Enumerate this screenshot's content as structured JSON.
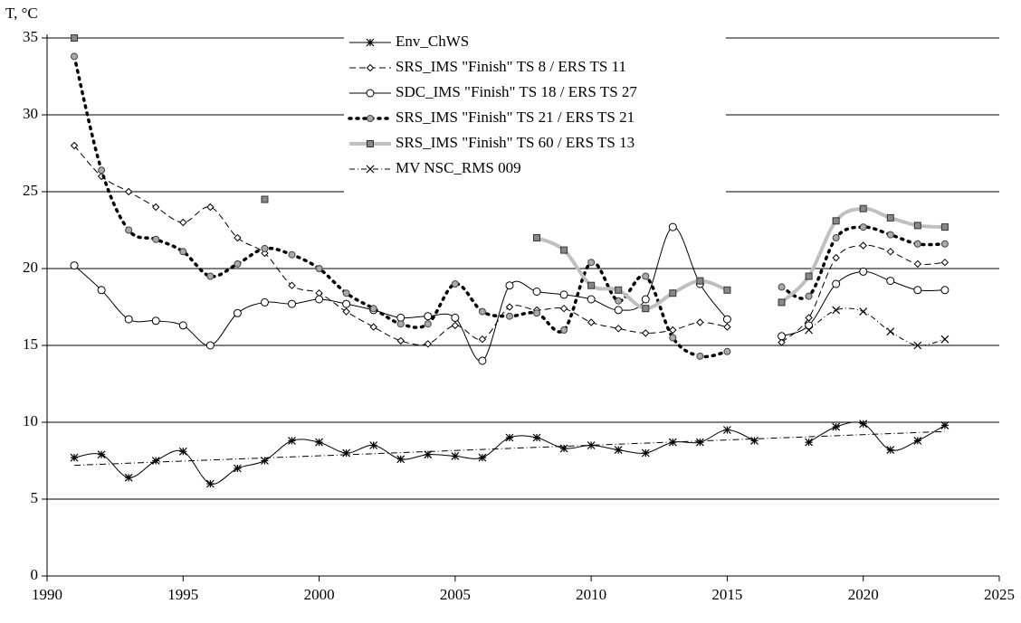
{
  "chart_data": {
    "type": "line",
    "y_label": "T, °C",
    "x": [
      1991,
      1992,
      1993,
      1994,
      1995,
      1996,
      1997,
      1998,
      1999,
      2000,
      2001,
      2002,
      2003,
      2004,
      2005,
      2006,
      2007,
      2008,
      2009,
      2010,
      2011,
      2012,
      2013,
      2014,
      2015,
      2016,
      2017,
      2018,
      2019,
      2020,
      2021,
      2022,
      2023
    ],
    "series": [
      {
        "name": "Env_ChWS",
        "color": "#000000",
        "width": 1,
        "dash": "solid",
        "marker": "star",
        "values": [
          7.7,
          7.9,
          6.4,
          7.5,
          8.1,
          6.0,
          7.0,
          7.5,
          8.8,
          8.7,
          8.0,
          8.5,
          7.6,
          7.9,
          7.8,
          7.7,
          9.0,
          9.0,
          8.3,
          8.5,
          8.2,
          8.0,
          8.7,
          8.7,
          9.5,
          8.8,
          null,
          8.7,
          9.7,
          9.9,
          8.2,
          8.8,
          9.8
        ]
      },
      {
        "name": "SRS_IMS \"Finish\" TS 8 / ERS TS 11",
        "color": "#000000",
        "width": 1,
        "dash": "dashed",
        "marker": "diamond",
        "values": [
          28,
          26,
          25,
          24,
          23,
          24,
          22,
          21,
          18.9,
          18.4,
          17.2,
          16.2,
          15.3,
          15.1,
          16.3,
          15.4,
          17.5,
          17.3,
          17.4,
          16.5,
          16.1,
          15.8,
          16.0,
          16.5,
          16.2,
          null,
          15.2,
          16.8,
          20.7,
          21.5,
          21.1,
          20.3,
          20.4
        ]
      },
      {
        "name": "SDC_IMS \"Finish\" TS 18 / ERS TS 27",
        "color": "#000000",
        "width": 1,
        "dash": "solid",
        "marker": "circle",
        "values": [
          20.2,
          18.6,
          16.7,
          16.6,
          16.3,
          15.0,
          17.1,
          17.8,
          17.7,
          18.0,
          17.7,
          17.3,
          16.8,
          16.9,
          16.8,
          14.0,
          18.9,
          18.5,
          18.3,
          18.0,
          17.3,
          18.0,
          22.7,
          19.0,
          16.7,
          null,
          15.6,
          16.3,
          19.0,
          19.8,
          19.2,
          18.6,
          18.6
        ]
      },
      {
        "name": "SRS_IMS \"Finish\" TS 21 / ERS TS 21",
        "color": "#000000",
        "width": 3.5,
        "dash": "dotted",
        "marker": "graycircle",
        "values": [
          33.8,
          26.4,
          22.5,
          21.9,
          21.1,
          19.5,
          20.3,
          21.3,
          20.9,
          20.0,
          18.4,
          17.4,
          16.4,
          16.4,
          19.0,
          17.2,
          16.9,
          17.1,
          16.0,
          20.4,
          17.9,
          19.5,
          15.5,
          14.3,
          14.6,
          null,
          18.8,
          18.2,
          22.0,
          22.7,
          22.2,
          21.6,
          21.6
        ]
      },
      {
        "name": "SRS_IMS \"Finish\" TS 60 / ERS TS 13",
        "color": "#c0c0c0",
        "width": 4,
        "dash": "solid",
        "marker": "square",
        "values": [
          35,
          null,
          null,
          null,
          null,
          null,
          null,
          24.5,
          null,
          null,
          null,
          null,
          null,
          null,
          null,
          null,
          null,
          22.0,
          21.2,
          18.9,
          18.6,
          17.4,
          18.4,
          19.2,
          18.6,
          null,
          17.8,
          19.5,
          23.1,
          23.9,
          23.3,
          22.8,
          22.7
        ]
      },
      {
        "name": "MV NSC_RMS 009",
        "color": "#000000",
        "width": 1,
        "dash": "dashdot",
        "marker": "cross",
        "values": [
          null,
          null,
          null,
          null,
          null,
          null,
          null,
          null,
          null,
          null,
          null,
          null,
          null,
          null,
          null,
          null,
          null,
          null,
          null,
          null,
          null,
          null,
          null,
          null,
          null,
          null,
          null,
          16.0,
          17.3,
          17.2,
          15.9,
          15.0,
          15.4
        ]
      }
    ],
    "trendline": {
      "x": [
        1991,
        2023
      ],
      "values": [
        7.2,
        9.4
      ]
    },
    "xlim": [
      1990,
      2025
    ],
    "xticks": [
      1990,
      1995,
      2000,
      2005,
      2010,
      2015,
      2020,
      2025
    ],
    "ylim": [
      0,
      35
    ],
    "yticks": [
      0,
      5,
      10,
      15,
      20,
      25,
      30,
      35
    ],
    "grid": true
  }
}
